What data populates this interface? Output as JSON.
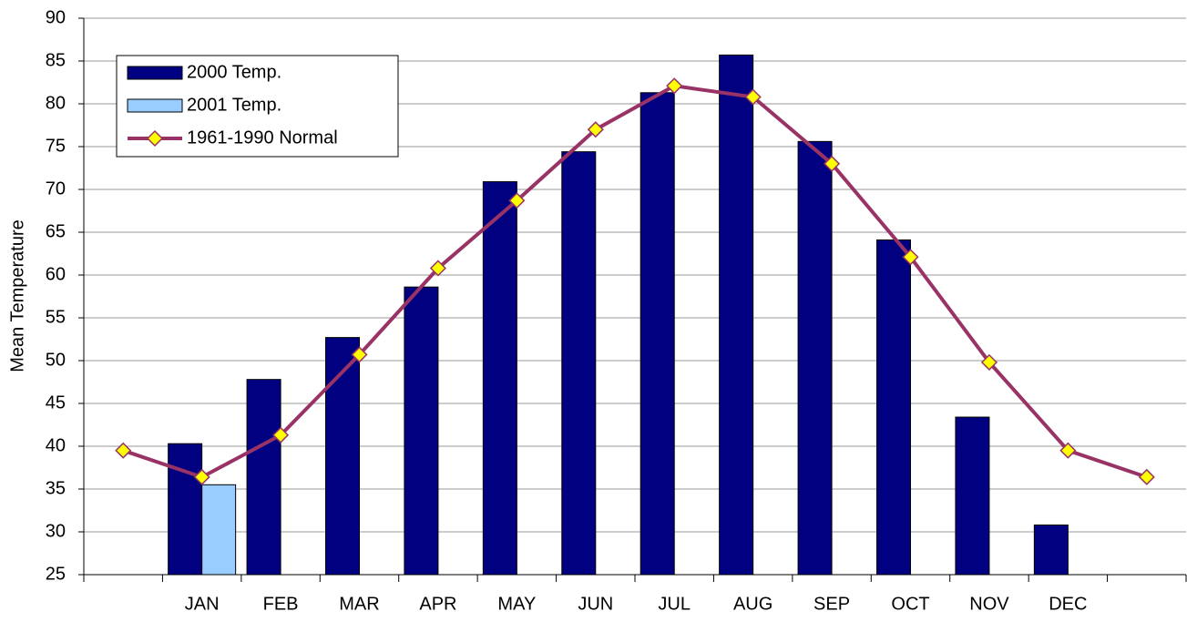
{
  "chart_data": {
    "type": "bar",
    "y_label": "Mean Temperature",
    "categories": [
      null,
      "JAN",
      "FEB",
      "MAR",
      "APR",
      "MAY",
      "JUN",
      "JUL",
      "AUG",
      "SEP",
      "OCT",
      "NOV",
      "DEC",
      null
    ],
    "series": [
      {
        "name": "2000 Temp.",
        "type": "bar",
        "color": "#000080",
        "values": [
          null,
          40.3,
          47.8,
          52.7,
          58.6,
          70.9,
          74.4,
          81.3,
          85.7,
          75.6,
          64.1,
          43.4,
          30.8,
          null
        ]
      },
      {
        "name": "2001 Temp.",
        "type": "bar",
        "color": "#99ccff",
        "values": [
          null,
          35.5,
          null,
          null,
          null,
          null,
          null,
          null,
          null,
          null,
          null,
          null,
          null,
          null
        ]
      },
      {
        "name": "1961-1990 Normal",
        "type": "line",
        "color": "#993366",
        "marker_color": "#ffff00",
        "values": [
          39.5,
          36.4,
          41.3,
          50.7,
          60.8,
          68.7,
          77.0,
          82.1,
          80.8,
          73.0,
          62.1,
          49.8,
          39.5,
          36.4
        ]
      }
    ],
    "ylim": [
      25,
      90
    ],
    "yticks": [
      25,
      30,
      35,
      40,
      45,
      50,
      55,
      60,
      65,
      70,
      75,
      80,
      85,
      90
    ],
    "grid": true,
    "legend": "top-left"
  }
}
